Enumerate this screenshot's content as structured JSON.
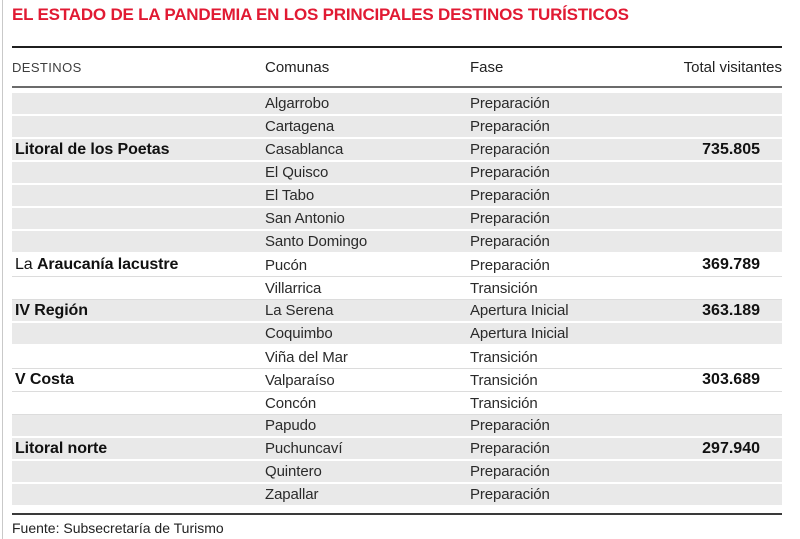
{
  "title": "EL ESTADO DE LA PANDEMIA EN LOS PRINCIPALES DESTINOS TURÍSTICOS",
  "source": "Fuente: Subsecretaría de Turismo",
  "colors": {
    "title_red": "#e11a33",
    "row_shade": "#e9e9e9",
    "text_dark": "#222222"
  },
  "chart_data": {
    "type": "table",
    "title": "EL ESTADO DE LA PANDEMIA EN LOS PRINCIPALES DESTINOS TURÍSTICOS",
    "columns": [
      "DESTINOS",
      "Comunas",
      "Fase",
      "Total visitantes"
    ],
    "rows": [
      {
        "destino_prefix": "",
        "destino": "",
        "comuna": "Algarrobo",
        "fase": "Preparación",
        "total": "",
        "shade": "gray"
      },
      {
        "destino_prefix": "",
        "destino": "",
        "comuna": "Cartagena",
        "fase": "Preparación",
        "total": "",
        "shade": "gray"
      },
      {
        "destino_prefix": "",
        "destino": "Litoral de los Poetas",
        "comuna": "Casablanca",
        "fase": "Preparación",
        "total": "735.805",
        "shade": "gray"
      },
      {
        "destino_prefix": "",
        "destino": "",
        "comuna": "El Quisco",
        "fase": "Preparación",
        "total": "",
        "shade": "gray"
      },
      {
        "destino_prefix": "",
        "destino": "",
        "comuna": "El Tabo",
        "fase": "Preparación",
        "total": "",
        "shade": "gray"
      },
      {
        "destino_prefix": "",
        "destino": "",
        "comuna": "San Antonio",
        "fase": "Preparación",
        "total": "",
        "shade": "gray"
      },
      {
        "destino_prefix": "",
        "destino": "",
        "comuna": "Santo Domingo",
        "fase": "Preparación",
        "total": "",
        "shade": "gray"
      },
      {
        "destino_prefix": "La ",
        "destino": "Araucanía lacustre",
        "comuna": "Pucón",
        "fase": "Preparación",
        "total": "369.789",
        "shade": "white"
      },
      {
        "destino_prefix": "",
        "destino": "",
        "comuna": "Villarrica",
        "fase": "Transición",
        "total": "",
        "shade": "white"
      },
      {
        "destino_prefix": "",
        "destino": "IV Región",
        "comuna": "La Serena",
        "fase": "Apertura Inicial",
        "total": "363.189",
        "shade": "gray"
      },
      {
        "destino_prefix": "",
        "destino": "",
        "comuna": "Coquimbo",
        "fase": "Apertura Inicial",
        "total": "",
        "shade": "gray"
      },
      {
        "destino_prefix": "",
        "destino": "",
        "comuna": "Viña del Mar",
        "fase": "Transición",
        "total": "",
        "shade": "white"
      },
      {
        "destino_prefix": "",
        "destino": "V Costa",
        "comuna": "Valparaíso",
        "fase": "Transición",
        "total": "303.689",
        "shade": "white"
      },
      {
        "destino_prefix": "",
        "destino": "",
        "comuna": "Concón",
        "fase": "Transición",
        "total": "",
        "shade": "white"
      },
      {
        "destino_prefix": "",
        "destino": "",
        "comuna": "Papudo",
        "fase": "Preparación",
        "total": "",
        "shade": "gray"
      },
      {
        "destino_prefix": "",
        "destino": "Litoral norte",
        "comuna": "Puchuncaví",
        "fase": "Preparación",
        "total": "297.940",
        "shade": "gray"
      },
      {
        "destino_prefix": "",
        "destino": "",
        "comuna": "Quintero",
        "fase": "Preparación",
        "total": "",
        "shade": "gray"
      },
      {
        "destino_prefix": "",
        "destino": "",
        "comuna": "Zapallar",
        "fase": "Preparación",
        "total": "",
        "shade": "gray"
      }
    ]
  }
}
